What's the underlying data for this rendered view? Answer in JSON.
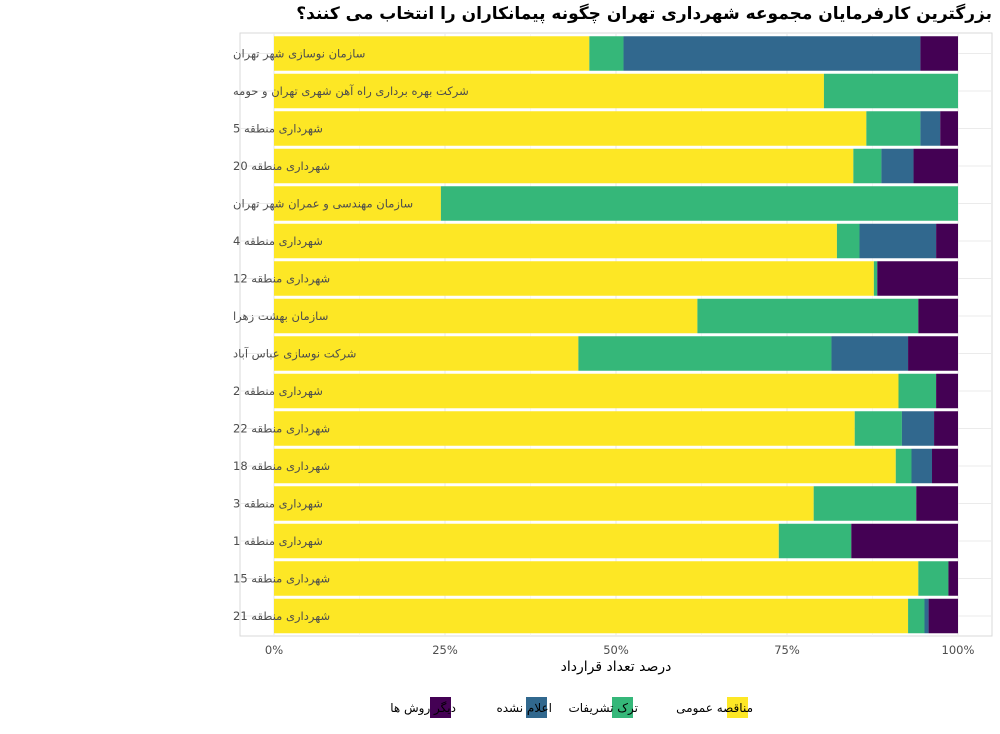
{
  "chart_data": {
    "type": "bar",
    "orientation": "horizontal",
    "stacked": true,
    "normalized": true,
    "title": "بزرگترین کارفرمایان مجموعه شهرداری تهران چگونه پیمانکاران را انتخاب می کنند؟",
    "xlabel": "درصد تعداد قرارداد",
    "ylabel": "",
    "xlim": [
      0,
      1
    ],
    "x_ticks": [
      0,
      0.25,
      0.5,
      0.75,
      1
    ],
    "x_tick_labels": [
      "0%",
      "25%",
      "50%",
      "75%",
      "100%"
    ],
    "grid": true,
    "legend_position": "bottom",
    "categories": [
      "سازمان نوسازی شهر تهران",
      "شرکت بهره برداری راه آهن شهری تهران و حومه",
      "شهرداری منطقه 5",
      "شهرداری منطقه 20",
      "سازمان مهندسی و عمران شهر تهران",
      "شهرداری منطقه 4",
      "شهرداری منطقه 12",
      "سازمان بهشت زهرا",
      "شرکت نوسازی عباس آباد",
      "شهرداری منطقه 2",
      "شهرداری منطقه 22",
      "شهرداری منطقه 18",
      "شهرداری منطقه 3",
      "شهرداری منطقه 1",
      "شهرداری منطقه 15",
      "شهرداری منطقه 21"
    ],
    "series": [
      {
        "name": "مناقصه عمومی",
        "color": "#fde725",
        "values": [
          0.461,
          0.804,
          0.866,
          0.847,
          0.244,
          0.823,
          0.877,
          0.619,
          0.445,
          0.913,
          0.849,
          0.909,
          0.789,
          0.738,
          0.942,
          0.927
        ]
      },
      {
        "name": "ترک تشریفات",
        "color": "#35b779",
        "values": [
          0.05,
          0.196,
          0.079,
          0.041,
          0.756,
          0.033,
          0.005,
          0.323,
          0.37,
          0.055,
          0.069,
          0.023,
          0.15,
          0.106,
          0.044,
          0.024
        ]
      },
      {
        "name": "اعلام نشده",
        "color": "#31688e",
        "values": [
          0.434,
          0.0,
          0.029,
          0.047,
          0.0,
          0.112,
          0.0,
          0.0,
          0.112,
          0.0,
          0.047,
          0.03,
          0.0,
          0.0,
          0.0,
          0.006
        ]
      },
      {
        "name": "دیگر روش ها",
        "color": "#440154",
        "values": [
          0.055,
          0.0,
          0.026,
          0.065,
          0.0,
          0.032,
          0.118,
          0.058,
          0.073,
          0.032,
          0.035,
          0.038,
          0.061,
          0.156,
          0.014,
          0.043
        ]
      }
    ],
    "legend_order": [
      "دیگر روش ها",
      "اعلام نشده",
      "ترک تشریفات",
      "مناقصه عمومی"
    ]
  }
}
